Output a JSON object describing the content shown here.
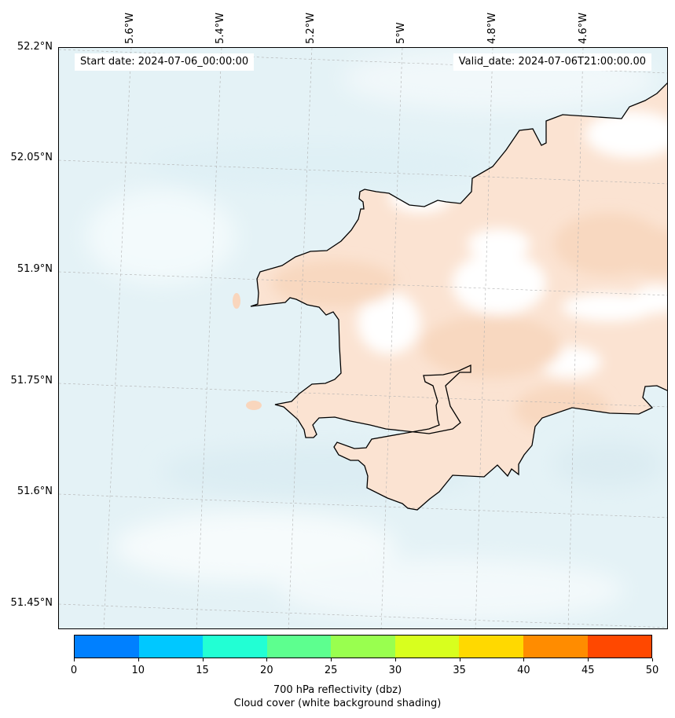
{
  "map": {
    "start_date": "Start date: 2024-07-06_00:00:00",
    "valid_date": "Valid_date: 2024-07-06T21:00:00.00",
    "lon_labels": [
      "5.6°W",
      "5.4°W",
      "5.2°W",
      "5°W",
      "4.8°W",
      "4.6°W"
    ],
    "lat_labels": [
      "52.2°N",
      "52.05°N",
      "51.9°N",
      "51.75°N",
      "51.6°N",
      "51.45°N"
    ],
    "colors": {
      "sea_cloud": "#e4f2f6",
      "land_cloud": "#fbe3d2",
      "clear_sky": "#ffffff",
      "coastline": "#000000"
    }
  },
  "colorbar": {
    "ticks": [
      "0",
      "10",
      "15",
      "20",
      "25",
      "30",
      "35",
      "40",
      "45",
      "50"
    ],
    "colors": [
      "#0080ff",
      "#00c8ff",
      "#22ffd4",
      "#5dff8f",
      "#99ff4f",
      "#d8ff1e",
      "#ffd900",
      "#ff8c00",
      "#ff4800"
    ],
    "label_line1": "700 hPa reflectivity (dbz)",
    "label_line2": "Cloud cover (white background shading)"
  }
}
